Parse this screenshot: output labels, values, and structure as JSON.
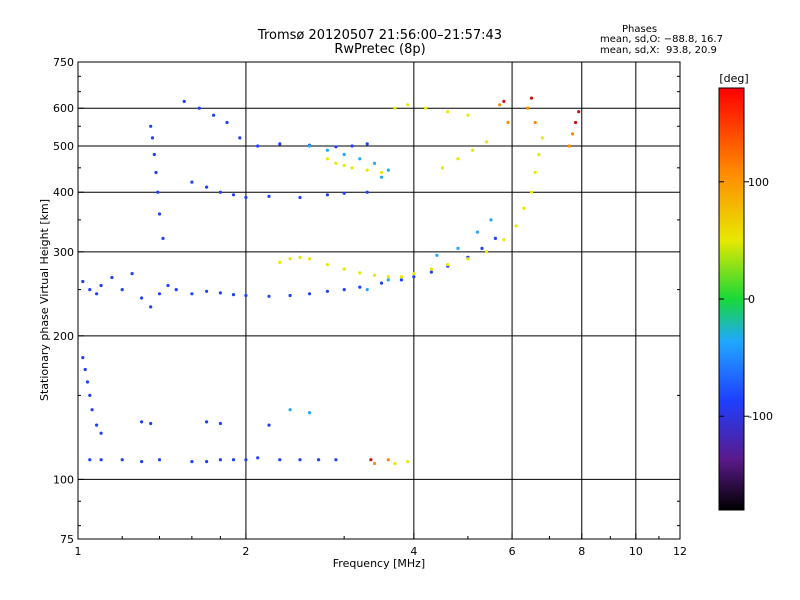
{
  "header": {
    "title_line1": "Tromsø 20120507 21:56:00–21:57:43",
    "title_line2": "RwPretec (8p)",
    "phases_label": "Phases",
    "stat_o": "mean, sd,O: −88.8, 16.7",
    "stat_x": "mean, sd,X:  93.8, 20.9"
  },
  "chart_data": {
    "type": "scatter",
    "title": "Tromsø 20120507 21:56:00–21:57:43",
    "subtitle": "RwPretec (8p)",
    "xlabel": "Frequency [MHz]",
    "ylabel": "Stationary phase Virtual Height [km]",
    "xscale": "log",
    "yscale": "log",
    "xlim": [
      1,
      12
    ],
    "ylim": [
      75,
      750
    ],
    "xticks": [
      1,
      2,
      4,
      6,
      8,
      10,
      12
    ],
    "yticks": [
      75,
      100,
      200,
      300,
      400,
      500,
      600,
      750
    ],
    "grid": true,
    "colorbar": {
      "label": "[deg]",
      "range": [
        -180,
        180
      ],
      "ticks": [
        -100,
        0,
        100
      ],
      "placement": "right"
    },
    "series": [
      {
        "color_hex": "#1f3fff",
        "points": [
          [
            1.02,
            260
          ],
          [
            1.05,
            250
          ],
          [
            1.08,
            245
          ],
          [
            1.1,
            255
          ],
          [
            1.15,
            265
          ],
          [
            1.2,
            250
          ],
          [
            1.25,
            270
          ],
          [
            1.3,
            240
          ],
          [
            1.35,
            230
          ],
          [
            1.4,
            245
          ],
          [
            1.45,
            255
          ],
          [
            1.5,
            250
          ],
          [
            1.6,
            245
          ],
          [
            1.7,
            248
          ],
          [
            1.8,
            246
          ],
          [
            1.9,
            244
          ],
          [
            2.0,
            243
          ],
          [
            2.2,
            242
          ],
          [
            2.4,
            243
          ],
          [
            2.6,
            245
          ],
          [
            2.8,
            248
          ],
          [
            3.0,
            250
          ],
          [
            3.2,
            253
          ],
          [
            3.5,
            258
          ],
          [
            3.8,
            262
          ],
          [
            4.0,
            266
          ],
          [
            4.3,
            272
          ],
          [
            4.6,
            280
          ],
          [
            5.0,
            292
          ],
          [
            5.3,
            305
          ],
          [
            5.6,
            320
          ],
          [
            1.35,
            550
          ],
          [
            1.36,
            520
          ],
          [
            1.37,
            480
          ],
          [
            1.38,
            440
          ],
          [
            1.39,
            400
          ],
          [
            1.4,
            360
          ],
          [
            1.42,
            320
          ],
          [
            1.55,
            620
          ],
          [
            1.65,
            600
          ],
          [
            1.75,
            580
          ],
          [
            1.85,
            560
          ],
          [
            1.95,
            520
          ],
          [
            2.1,
            500
          ],
          [
            2.3,
            505
          ],
          [
            2.6,
            502
          ],
          [
            2.9,
            498
          ],
          [
            3.1,
            500
          ],
          [
            3.3,
            505
          ],
          [
            1.6,
            420
          ],
          [
            1.7,
            410
          ],
          [
            1.8,
            400
          ],
          [
            1.9,
            395
          ],
          [
            2.0,
            390
          ],
          [
            2.2,
            392
          ],
          [
            2.5,
            390
          ],
          [
            2.8,
            395
          ],
          [
            3.0,
            398
          ],
          [
            3.3,
            400
          ],
          [
            1.02,
            180
          ],
          [
            1.03,
            170
          ],
          [
            1.04,
            160
          ],
          [
            1.05,
            150
          ],
          [
            1.06,
            140
          ],
          [
            1.08,
            130
          ],
          [
            1.1,
            125
          ],
          [
            1.3,
            132
          ],
          [
            1.35,
            131
          ],
          [
            1.7,
            132
          ],
          [
            1.8,
            131
          ],
          [
            2.2,
            130
          ],
          [
            1.05,
            110
          ],
          [
            1.1,
            110
          ],
          [
            1.2,
            110
          ],
          [
            1.3,
            109
          ],
          [
            1.4,
            110
          ],
          [
            1.6,
            109
          ],
          [
            1.7,
            109
          ],
          [
            1.8,
            110
          ],
          [
            1.9,
            110
          ],
          [
            2.0,
            110
          ],
          [
            2.1,
            111
          ],
          [
            2.3,
            110
          ],
          [
            2.5,
            110
          ],
          [
            2.7,
            110
          ],
          [
            2.9,
            110
          ]
        ]
      },
      {
        "color_hex": "#20a8ff",
        "points": [
          [
            2.6,
            500
          ],
          [
            2.8,
            490
          ],
          [
            3.0,
            480
          ],
          [
            3.2,
            470
          ],
          [
            3.4,
            460
          ],
          [
            3.6,
            445
          ],
          [
            3.3,
            250
          ],
          [
            3.6,
            262
          ],
          [
            4.4,
            295
          ],
          [
            4.8,
            305
          ],
          [
            5.2,
            330
          ],
          [
            5.5,
            350
          ],
          [
            2.4,
            140
          ],
          [
            2.6,
            138
          ],
          [
            3.5,
            430
          ]
        ]
      },
      {
        "color_hex": "#e8e800",
        "points": [
          [
            2.3,
            285
          ],
          [
            2.4,
            290
          ],
          [
            2.5,
            292
          ],
          [
            2.6,
            290
          ],
          [
            2.8,
            282
          ],
          [
            3.0,
            276
          ],
          [
            3.2,
            271
          ],
          [
            3.4,
            268
          ],
          [
            3.6,
            266
          ],
          [
            3.8,
            266
          ],
          [
            4.0,
            270
          ],
          [
            4.3,
            276
          ],
          [
            4.6,
            282
          ],
          [
            5.0,
            290
          ],
          [
            5.4,
            300
          ],
          [
            5.8,
            318
          ],
          [
            6.1,
            340
          ],
          [
            6.3,
            370
          ],
          [
            6.5,
            400
          ],
          [
            6.6,
            440
          ],
          [
            6.7,
            480
          ],
          [
            6.8,
            520
          ],
          [
            2.8,
            470
          ],
          [
            2.9,
            460
          ],
          [
            3.0,
            455
          ],
          [
            3.1,
            450
          ],
          [
            3.3,
            445
          ],
          [
            3.5,
            440
          ],
          [
            4.5,
            450
          ],
          [
            4.8,
            470
          ],
          [
            5.1,
            490
          ],
          [
            5.4,
            510
          ],
          [
            3.9,
            109
          ],
          [
            3.7,
            108
          ],
          [
            3.7,
            600
          ],
          [
            3.9,
            610
          ],
          [
            4.2,
            600
          ],
          [
            4.6,
            590
          ],
          [
            5.0,
            580
          ]
        ]
      },
      {
        "color_hex": "#ff8a00",
        "points": [
          [
            5.7,
            610
          ],
          [
            5.9,
            560
          ],
          [
            6.4,
            600
          ],
          [
            6.6,
            560
          ],
          [
            7.6,
            500
          ],
          [
            7.7,
            530
          ],
          [
            3.4,
            108
          ],
          [
            3.6,
            110
          ]
        ]
      },
      {
        "color_hex": "#d01010",
        "points": [
          [
            5.8,
            620
          ],
          [
            6.5,
            630
          ],
          [
            3.35,
            110
          ],
          [
            7.8,
            560
          ],
          [
            7.9,
            590
          ]
        ]
      }
    ]
  }
}
